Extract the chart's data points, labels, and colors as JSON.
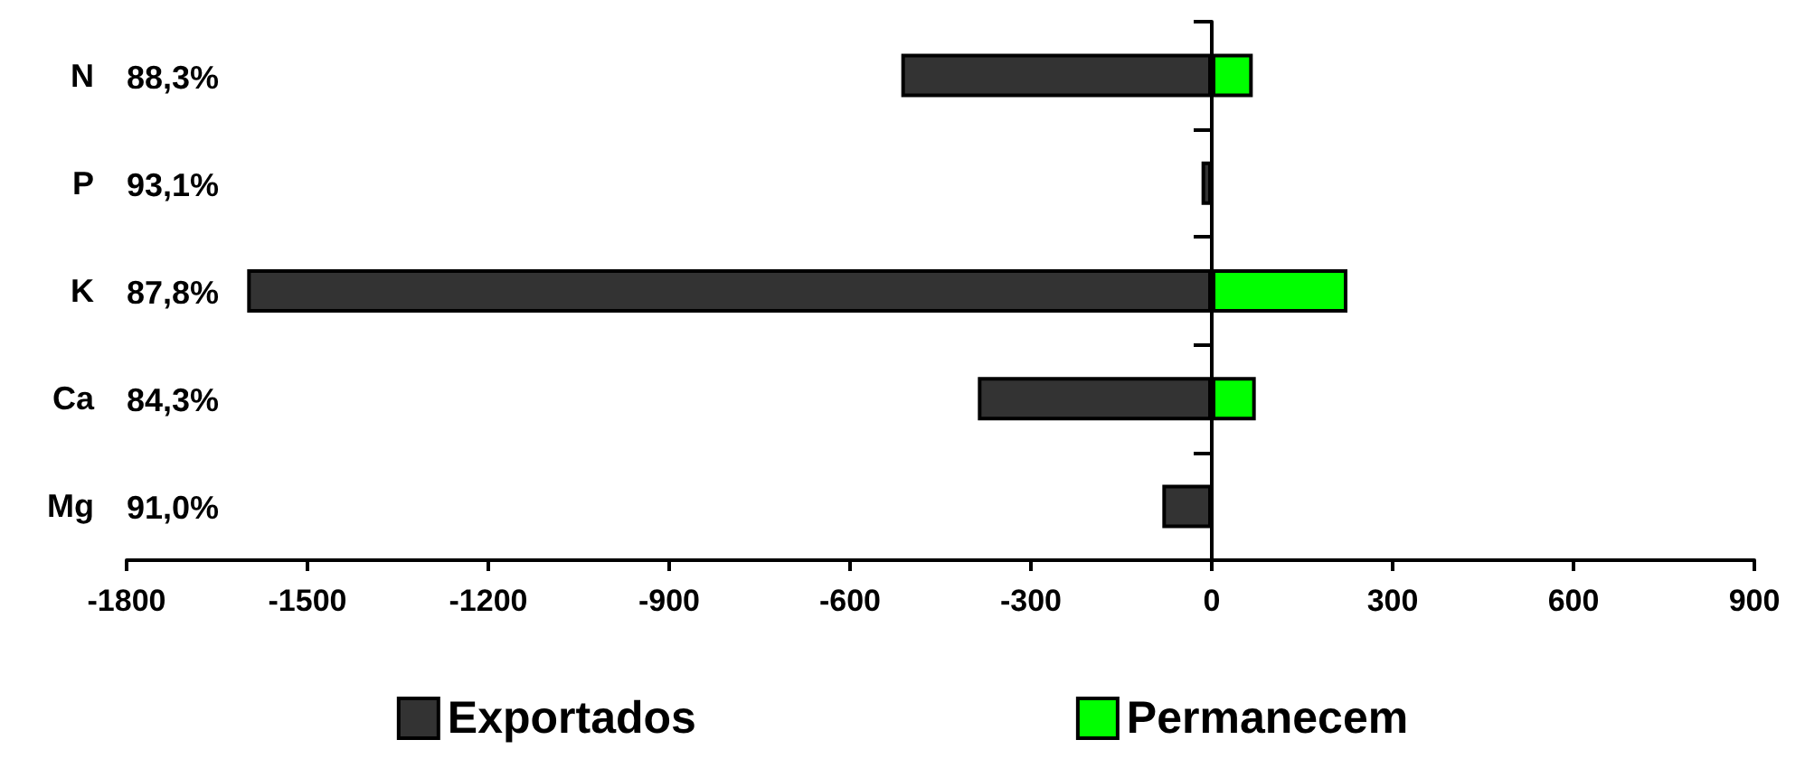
{
  "chart_data": {
    "type": "bar",
    "orientation": "horizontal",
    "categories": [
      "N",
      "P",
      "K",
      "Ca",
      "Mg"
    ],
    "series": [
      {
        "name": "Exportados",
        "color": "#333333",
        "values": [
          -515,
          -17,
          -1600,
          -388,
          -82
        ]
      },
      {
        "name": "Permanecem",
        "color": "#00ff00",
        "values": [
          68,
          null,
          225,
          73,
          null
        ]
      }
    ],
    "xlim": [
      -1800,
      900
    ],
    "xticks": [
      -1800,
      -1500,
      -1200,
      -900,
      -600,
      -300,
      0,
      300,
      600,
      900
    ],
    "annotations": [
      "88,3%",
      "93,1%",
      "87,8%",
      "84,3%",
      "91,0%"
    ],
    "stacked": true,
    "legend": "bottom"
  }
}
